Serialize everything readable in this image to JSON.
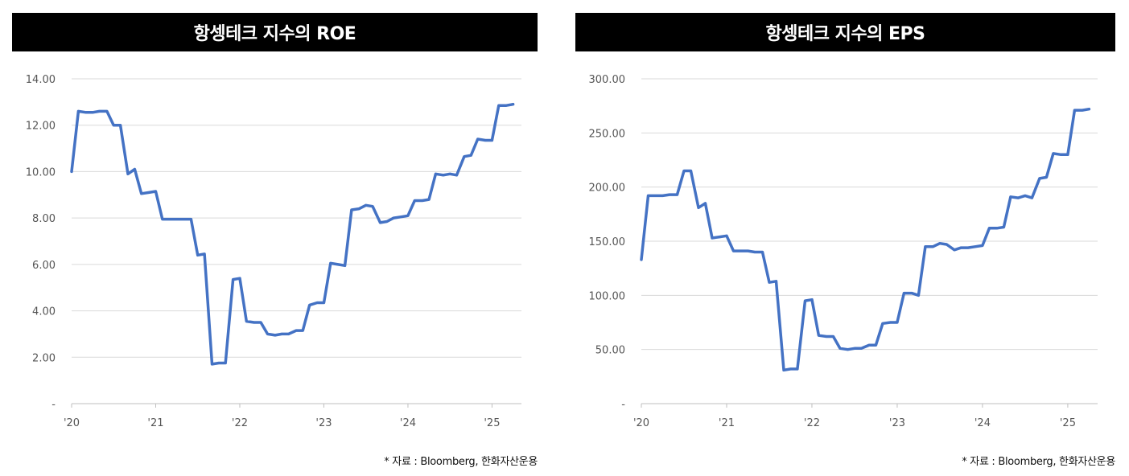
{
  "chart_data": [
    {
      "type": "line",
      "title": "항셍테크 지수의 ROE",
      "color": "#4472C4",
      "x_tick_labels": [
        "'20",
        "'21",
        "'22",
        "'23",
        "'24",
        "'25"
      ],
      "y_tick_labels": [
        "-",
        "2.00",
        "4.00",
        "6.00",
        "8.00",
        "10.00",
        "12.00",
        "14.00"
      ],
      "ylim": [
        0,
        14
      ],
      "xlim": [
        2020.0,
        2025.35
      ],
      "grid": true,
      "series": [
        {
          "x": [
            2020.0,
            2020.08,
            2020.17,
            2020.25,
            2020.33,
            2020.42,
            2020.5,
            2020.58,
            2020.67,
            2020.75,
            2020.83,
            2020.92,
            2021.0,
            2021.08,
            2021.17,
            2021.25,
            2021.33,
            2021.42,
            2021.5,
            2021.58,
            2021.67,
            2021.75,
            2021.83,
            2021.92,
            2022.0,
            2022.08,
            2022.17,
            2022.25,
            2022.33,
            2022.42,
            2022.5,
            2022.58,
            2022.67,
            2022.75,
            2022.83,
            2022.92,
            2023.0,
            2023.08,
            2023.17,
            2023.25,
            2023.33,
            2023.42,
            2023.5,
            2023.58,
            2023.67,
            2023.75,
            2023.83,
            2023.92,
            2024.0,
            2024.08,
            2024.17,
            2024.25,
            2024.33,
            2024.42,
            2024.5,
            2024.58,
            2024.67,
            2024.75,
            2024.83,
            2024.92,
            2025.0,
            2025.08,
            2025.17,
            2025.25
          ],
          "values": [
            10.0,
            12.6,
            12.55,
            12.55,
            12.6,
            12.6,
            12.0,
            12.0,
            9.9,
            10.1,
            9.05,
            9.1,
            9.15,
            7.95,
            7.95,
            7.95,
            7.95,
            7.95,
            6.4,
            6.45,
            1.7,
            1.75,
            1.75,
            5.35,
            5.4,
            3.55,
            3.5,
            3.5,
            3.0,
            2.95,
            3.0,
            3.0,
            3.15,
            3.15,
            4.25,
            4.35,
            4.35,
            6.05,
            6.0,
            5.95,
            8.35,
            8.4,
            8.55,
            8.5,
            7.8,
            7.85,
            8.0,
            8.05,
            8.1,
            8.75,
            8.75,
            8.8,
            9.9,
            9.85,
            9.9,
            9.85,
            10.65,
            10.7,
            11.4,
            11.35,
            11.35,
            12.85,
            12.85,
            12.9
          ]
        }
      ],
      "source": "* 자료 : Bloomberg, 한화자산운용"
    },
    {
      "type": "line",
      "title": "항셍테크 지수의 EPS",
      "color": "#4472C4",
      "x_tick_labels": [
        "'20",
        "'21",
        "'22",
        "'23",
        "'24",
        "'25"
      ],
      "y_tick_labels": [
        "-",
        "50.00",
        "100.00",
        "150.00",
        "200.00",
        "250.00",
        "300.00"
      ],
      "ylim": [
        0,
        300
      ],
      "xlim": [
        2020.0,
        2025.35
      ],
      "grid": true,
      "series": [
        {
          "x": [
            2020.0,
            2020.08,
            2020.17,
            2020.25,
            2020.33,
            2020.42,
            2020.5,
            2020.58,
            2020.67,
            2020.75,
            2020.83,
            2020.92,
            2021.0,
            2021.08,
            2021.17,
            2021.25,
            2021.33,
            2021.42,
            2021.5,
            2021.58,
            2021.67,
            2021.75,
            2021.83,
            2021.92,
            2022.0,
            2022.08,
            2022.17,
            2022.25,
            2022.33,
            2022.42,
            2022.5,
            2022.58,
            2022.67,
            2022.75,
            2022.83,
            2022.92,
            2023.0,
            2023.08,
            2023.17,
            2023.25,
            2023.33,
            2023.42,
            2023.5,
            2023.58,
            2023.67,
            2023.75,
            2023.83,
            2023.92,
            2024.0,
            2024.08,
            2024.17,
            2024.25,
            2024.33,
            2024.42,
            2024.5,
            2024.58,
            2024.67,
            2024.75,
            2024.83,
            2024.92,
            2025.0,
            2025.08,
            2025.17,
            2025.25
          ],
          "values": [
            133,
            192,
            192,
            192,
            193,
            193,
            215,
            215,
            181,
            185,
            153,
            154,
            155,
            141,
            141,
            141,
            140,
            140,
            112,
            113,
            31,
            32,
            32,
            95,
            96,
            63,
            62,
            62,
            51,
            50,
            51,
            51,
            54,
            54,
            74,
            75,
            75,
            102,
            102,
            100,
            145,
            145,
            148,
            147,
            142,
            144,
            144,
            145,
            146,
            162,
            162,
            163,
            191,
            190,
            192,
            190,
            208,
            209,
            231,
            230,
            230,
            271,
            271,
            272
          ]
        }
      ],
      "source": "* 자료 : Bloomberg, 한화자산운용"
    }
  ]
}
